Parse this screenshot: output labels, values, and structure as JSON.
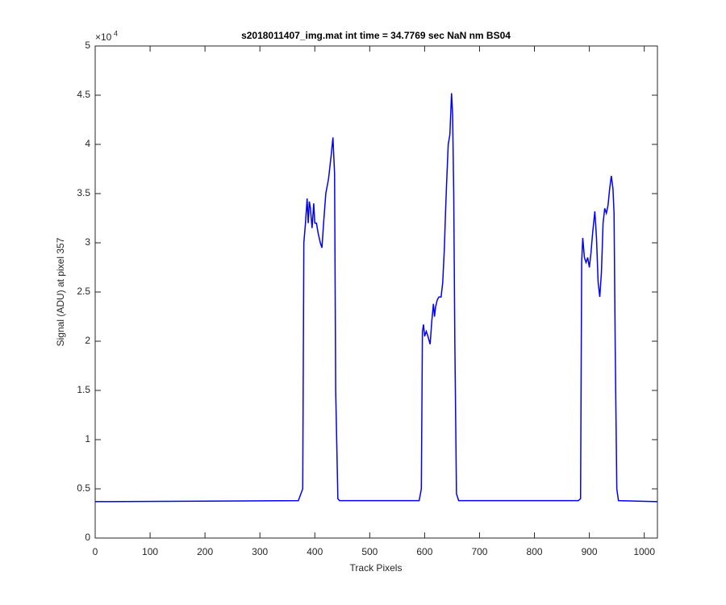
{
  "chart_data": {
    "type": "line",
    "title": "s2018011407_img.mat int time = 34.7769 sec  NaN nm BS04",
    "x_label": "Track Pixels",
    "y_label": "Signal (ADU) at pixel 357",
    "y_exponent_base": "×10",
    "y_exponent_power": "4",
    "xlim": [
      0,
      1024
    ],
    "ylim": [
      0,
      5
    ],
    "xticks": [
      0,
      100,
      200,
      300,
      400,
      500,
      600,
      700,
      800,
      900,
      1000
    ],
    "yticks": [
      0,
      0.5,
      1,
      1.5,
      2,
      2.5,
      3,
      3.5,
      4,
      4.5,
      5
    ],
    "grid": false,
    "series": [
      {
        "color": "#0000ff",
        "x": [
          0,
          370,
          378,
          380,
          383,
          386,
          388,
          390,
          392,
          395,
          398,
          400,
          403,
          406,
          410,
          413,
          416,
          420,
          425,
          428,
          430,
          433,
          436,
          438,
          442,
          445,
          590,
          594,
          596,
          598,
          600,
          603,
          606,
          610,
          613,
          616,
          618,
          620,
          623,
          626,
          630,
          633,
          636,
          638,
          640,
          643,
          646,
          649,
          651,
          653,
          655,
          658,
          662,
          880,
          884,
          886,
          888,
          891,
          894,
          897,
          900,
          903,
          906,
          910,
          913,
          916,
          919,
          922,
          925,
          928,
          931,
          934,
          937,
          940,
          943,
          945,
          947,
          950,
          953,
          1024
        ],
        "values": [
          0.37,
          0.38,
          0.5,
          3.0,
          3.2,
          3.45,
          3.2,
          3.42,
          3.35,
          3.15,
          3.4,
          3.2,
          3.2,
          3.1,
          3.0,
          2.95,
          3.2,
          3.5,
          3.65,
          3.8,
          3.9,
          4.07,
          3.7,
          1.5,
          0.4,
          0.38,
          0.38,
          0.5,
          2.1,
          2.17,
          2.05,
          2.1,
          2.05,
          1.97,
          2.2,
          2.38,
          2.25,
          2.35,
          2.42,
          2.45,
          2.45,
          2.6,
          2.95,
          3.3,
          3.6,
          4.0,
          4.1,
          4.52,
          4.3,
          3.5,
          2.0,
          0.45,
          0.38,
          0.38,
          0.4,
          2.8,
          3.05,
          2.85,
          2.8,
          2.85,
          2.75,
          2.9,
          3.1,
          3.32,
          3.05,
          2.6,
          2.45,
          2.7,
          3.2,
          3.35,
          3.3,
          3.38,
          3.55,
          3.68,
          3.55,
          3.3,
          2.0,
          0.5,
          0.38,
          0.37
        ]
      }
    ]
  }
}
